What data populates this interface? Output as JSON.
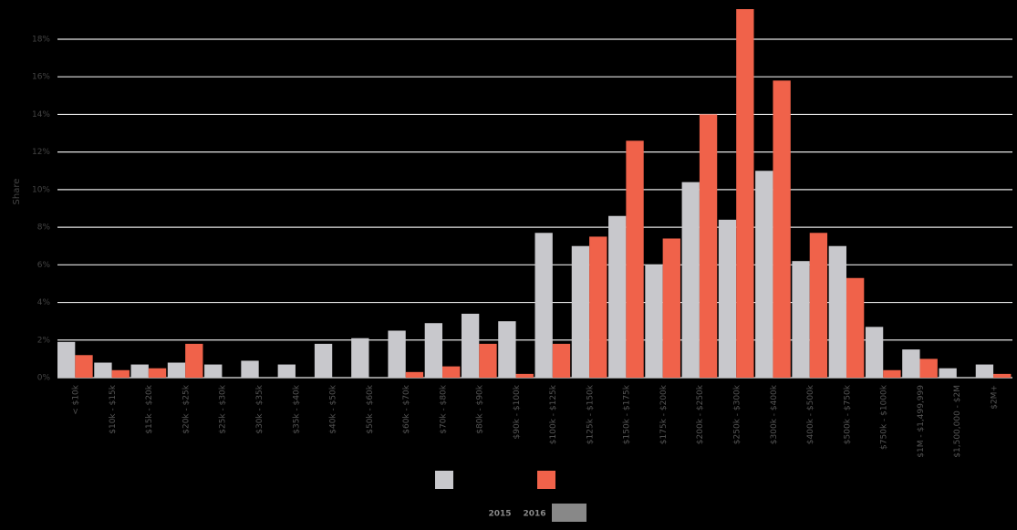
{
  "chart_data": {
    "type": "bar",
    "y_label": "Share",
    "categories": [
      "< $10k",
      "$10k - $15k",
      "$15k - $20k",
      "$20k - $25k",
      "$25k - $30k",
      "$30k - $35k",
      "$35k - $40k",
      "$40k - $50k",
      "$50k - $60k",
      "$60k - $70k",
      "$70k - $80k",
      "$80k - $90k",
      "$90k - $100k",
      "$100k - $125k",
      "$125k - $150k",
      "$150k - $175k",
      "$175k - $200k",
      "$200k - $250k",
      "$250k - $300k",
      "$300k - $400k",
      "$400k - $500k",
      "$500k - $750k",
      "$750k - $1000k",
      "$1M - $1,499,999",
      "$1,500,000 - $2M",
      "$2M+"
    ],
    "series": [
      {
        "color": "#c8c8cc",
        "values": [
          1.9,
          0.8,
          0.7,
          0.8,
          0.7,
          0.9,
          0.7,
          1.8,
          2.1,
          2.5,
          2.9,
          3.4,
          3.0,
          7.7,
          7.0,
          8.6,
          6.0,
          10.4,
          8.4,
          11.0,
          6.2,
          7.0,
          2.7,
          1.5,
          0.5,
          0.7
        ]
      },
      {
        "color": "#f0624a",
        "values": [
          1.2,
          0.4,
          0.5,
          1.8,
          0,
          0,
          0,
          0,
          0,
          0.3,
          0.6,
          1.8,
          0.2,
          1.8,
          7.5,
          12.6,
          7.4,
          14.0,
          19.6,
          15.8,
          7.7,
          5.3,
          0.4,
          1.0,
          0,
          0.2
        ]
      }
    ],
    "ylim": [
      0,
      19.6
    ],
    "yticks": [
      {
        "value": 0,
        "label": "0%"
      },
      {
        "value": 2,
        "label": "2%"
      },
      {
        "value": 4,
        "label": "4%"
      },
      {
        "value": 6,
        "label": "6%"
      },
      {
        "value": 8,
        "label": "8%"
      },
      {
        "value": 10,
        "label": "10%"
      },
      {
        "value": 12,
        "label": "12%"
      },
      {
        "value": 14,
        "label": "14%"
      },
      {
        "value": 16,
        "label": "16%"
      },
      {
        "value": 18,
        "label": "18%"
      }
    ],
    "grid": true,
    "years": [
      "2015",
      "2016"
    ]
  }
}
